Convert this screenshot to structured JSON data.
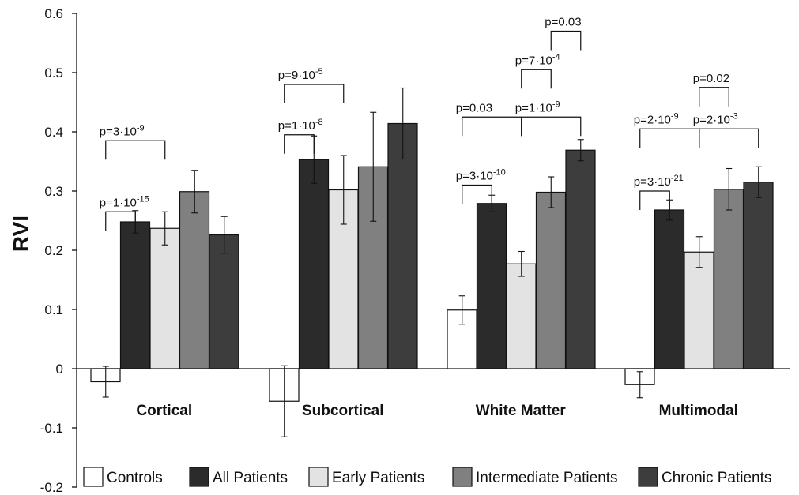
{
  "chart_data": {
    "type": "bar",
    "ylabel": "RVI",
    "ylim": [
      -0.2,
      0.6
    ],
    "yticks": [
      {
        "v": 0.6,
        "label": "0.6"
      },
      {
        "v": 0.5,
        "label": "0.5"
      },
      {
        "v": 0.4,
        "label": "0.4"
      },
      {
        "v": 0.3,
        "label": "0.3"
      },
      {
        "v": 0.2,
        "label": "0.2"
      },
      {
        "v": 0.1,
        "label": "0.1"
      },
      {
        "v": 0.0,
        "label": "0"
      },
      {
        "v": -0.1,
        "label": "-0.1"
      },
      {
        "v": -0.2,
        "label": "-0.2"
      }
    ],
    "categories": [
      "Cortical",
      "Subcortical",
      "White Matter",
      "Multimodal"
    ],
    "grid": false,
    "legend_position": "bottom",
    "series": [
      {
        "name": "Controls",
        "color": "#ffffff",
        "values": [
          -0.022,
          -0.055,
          0.099,
          -0.027
        ],
        "errors": [
          0.026,
          0.06,
          0.024,
          0.022
        ]
      },
      {
        "name": "All Patients",
        "color": "#2b2b2b",
        "values": [
          0.248,
          0.353,
          0.279,
          0.268
        ],
        "errors": [
          0.019,
          0.04,
          0.014,
          0.017
        ]
      },
      {
        "name": "Early Patients",
        "color": "#e3e3e3",
        "values": [
          0.237,
          0.302,
          0.177,
          0.197
        ],
        "errors": [
          0.028,
          0.058,
          0.021,
          0.026
        ]
      },
      {
        "name": "Intermediate Patients",
        "color": "#808080",
        "values": [
          0.299,
          0.341,
          0.298,
          0.303
        ],
        "errors": [
          0.036,
          0.092,
          0.026,
          0.035
        ]
      },
      {
        "name": "Chronic Patients",
        "color": "#3d3d3d",
        "values": [
          0.226,
          0.414,
          0.369,
          0.315
        ],
        "errors": [
          0.031,
          0.06,
          0.018,
          0.026
        ]
      }
    ],
    "annotations": [
      {
        "group": 0,
        "from": 0,
        "to": 1,
        "level": 0.265,
        "base": "p=1·10",
        "exp": "-15"
      },
      {
        "group": 0,
        "from": 0,
        "to": 2,
        "level": 0.385,
        "base": "p=3·10",
        "exp": "-9"
      },
      {
        "group": 1,
        "from": 0,
        "to": 1,
        "level": 0.395,
        "base": "p=1·10",
        "exp": "-8"
      },
      {
        "group": 1,
        "from": 0,
        "to": 2,
        "level": 0.48,
        "base": "p=9·10",
        "exp": "-5"
      },
      {
        "group": 2,
        "from": 0,
        "to": 1,
        "level": 0.31,
        "base": "p=3·10",
        "exp": "-10"
      },
      {
        "group": 2,
        "from": 0,
        "to": 2,
        "level": 0.425,
        "base": "p=0.03",
        "exp": ""
      },
      {
        "group": 2,
        "from": 2,
        "to": 4,
        "level": 0.425,
        "base": "p=1·10",
        "exp": "-9"
      },
      {
        "group": 2,
        "from": 2,
        "to": 3,
        "level": 0.505,
        "base": "p=7·10",
        "exp": "-4"
      },
      {
        "group": 2,
        "from": 3,
        "to": 4,
        "level": 0.57,
        "base": "p=0.03",
        "exp": ""
      },
      {
        "group": 3,
        "from": 0,
        "to": 1,
        "level": 0.3,
        "base": "p=3·10",
        "exp": "-21"
      },
      {
        "group": 3,
        "from": 0,
        "to": 2,
        "level": 0.405,
        "base": "p=2·10",
        "exp": "-9"
      },
      {
        "group": 3,
        "from": 2,
        "to": 4,
        "level": 0.405,
        "base": "p=2·10",
        "exp": "-3"
      },
      {
        "group": 3,
        "from": 2,
        "to": 3,
        "level": 0.475,
        "base": "p=0.02",
        "exp": ""
      }
    ]
  }
}
